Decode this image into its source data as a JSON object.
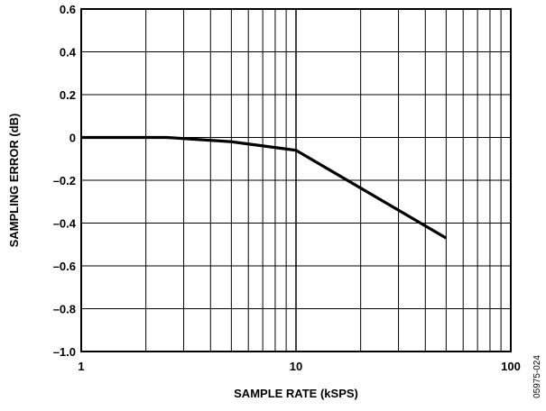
{
  "chart_data": {
    "type": "line",
    "xlabel": "SAMPLE RATE (kSPS)",
    "ylabel": "SAMPLING ERROR (dB)",
    "x_scale": "log",
    "xlim": [
      1,
      100
    ],
    "ylim": [
      -1.0,
      0.6
    ],
    "grid": true,
    "x_ticks": [
      "1",
      "10",
      "100"
    ],
    "y_ticks": [
      "0.6",
      "0.4",
      "0.2",
      "0",
      "–0.2",
      "–0.4",
      "–0.6",
      "–0.8",
      "–1.0"
    ],
    "series": [
      {
        "x": [
          1,
          2.5,
          5,
          10,
          50
        ],
        "y": [
          0,
          0,
          -0.02,
          -0.06,
          -0.47
        ]
      }
    ],
    "series_color": "#000000",
    "figure_code": "05975-024"
  }
}
